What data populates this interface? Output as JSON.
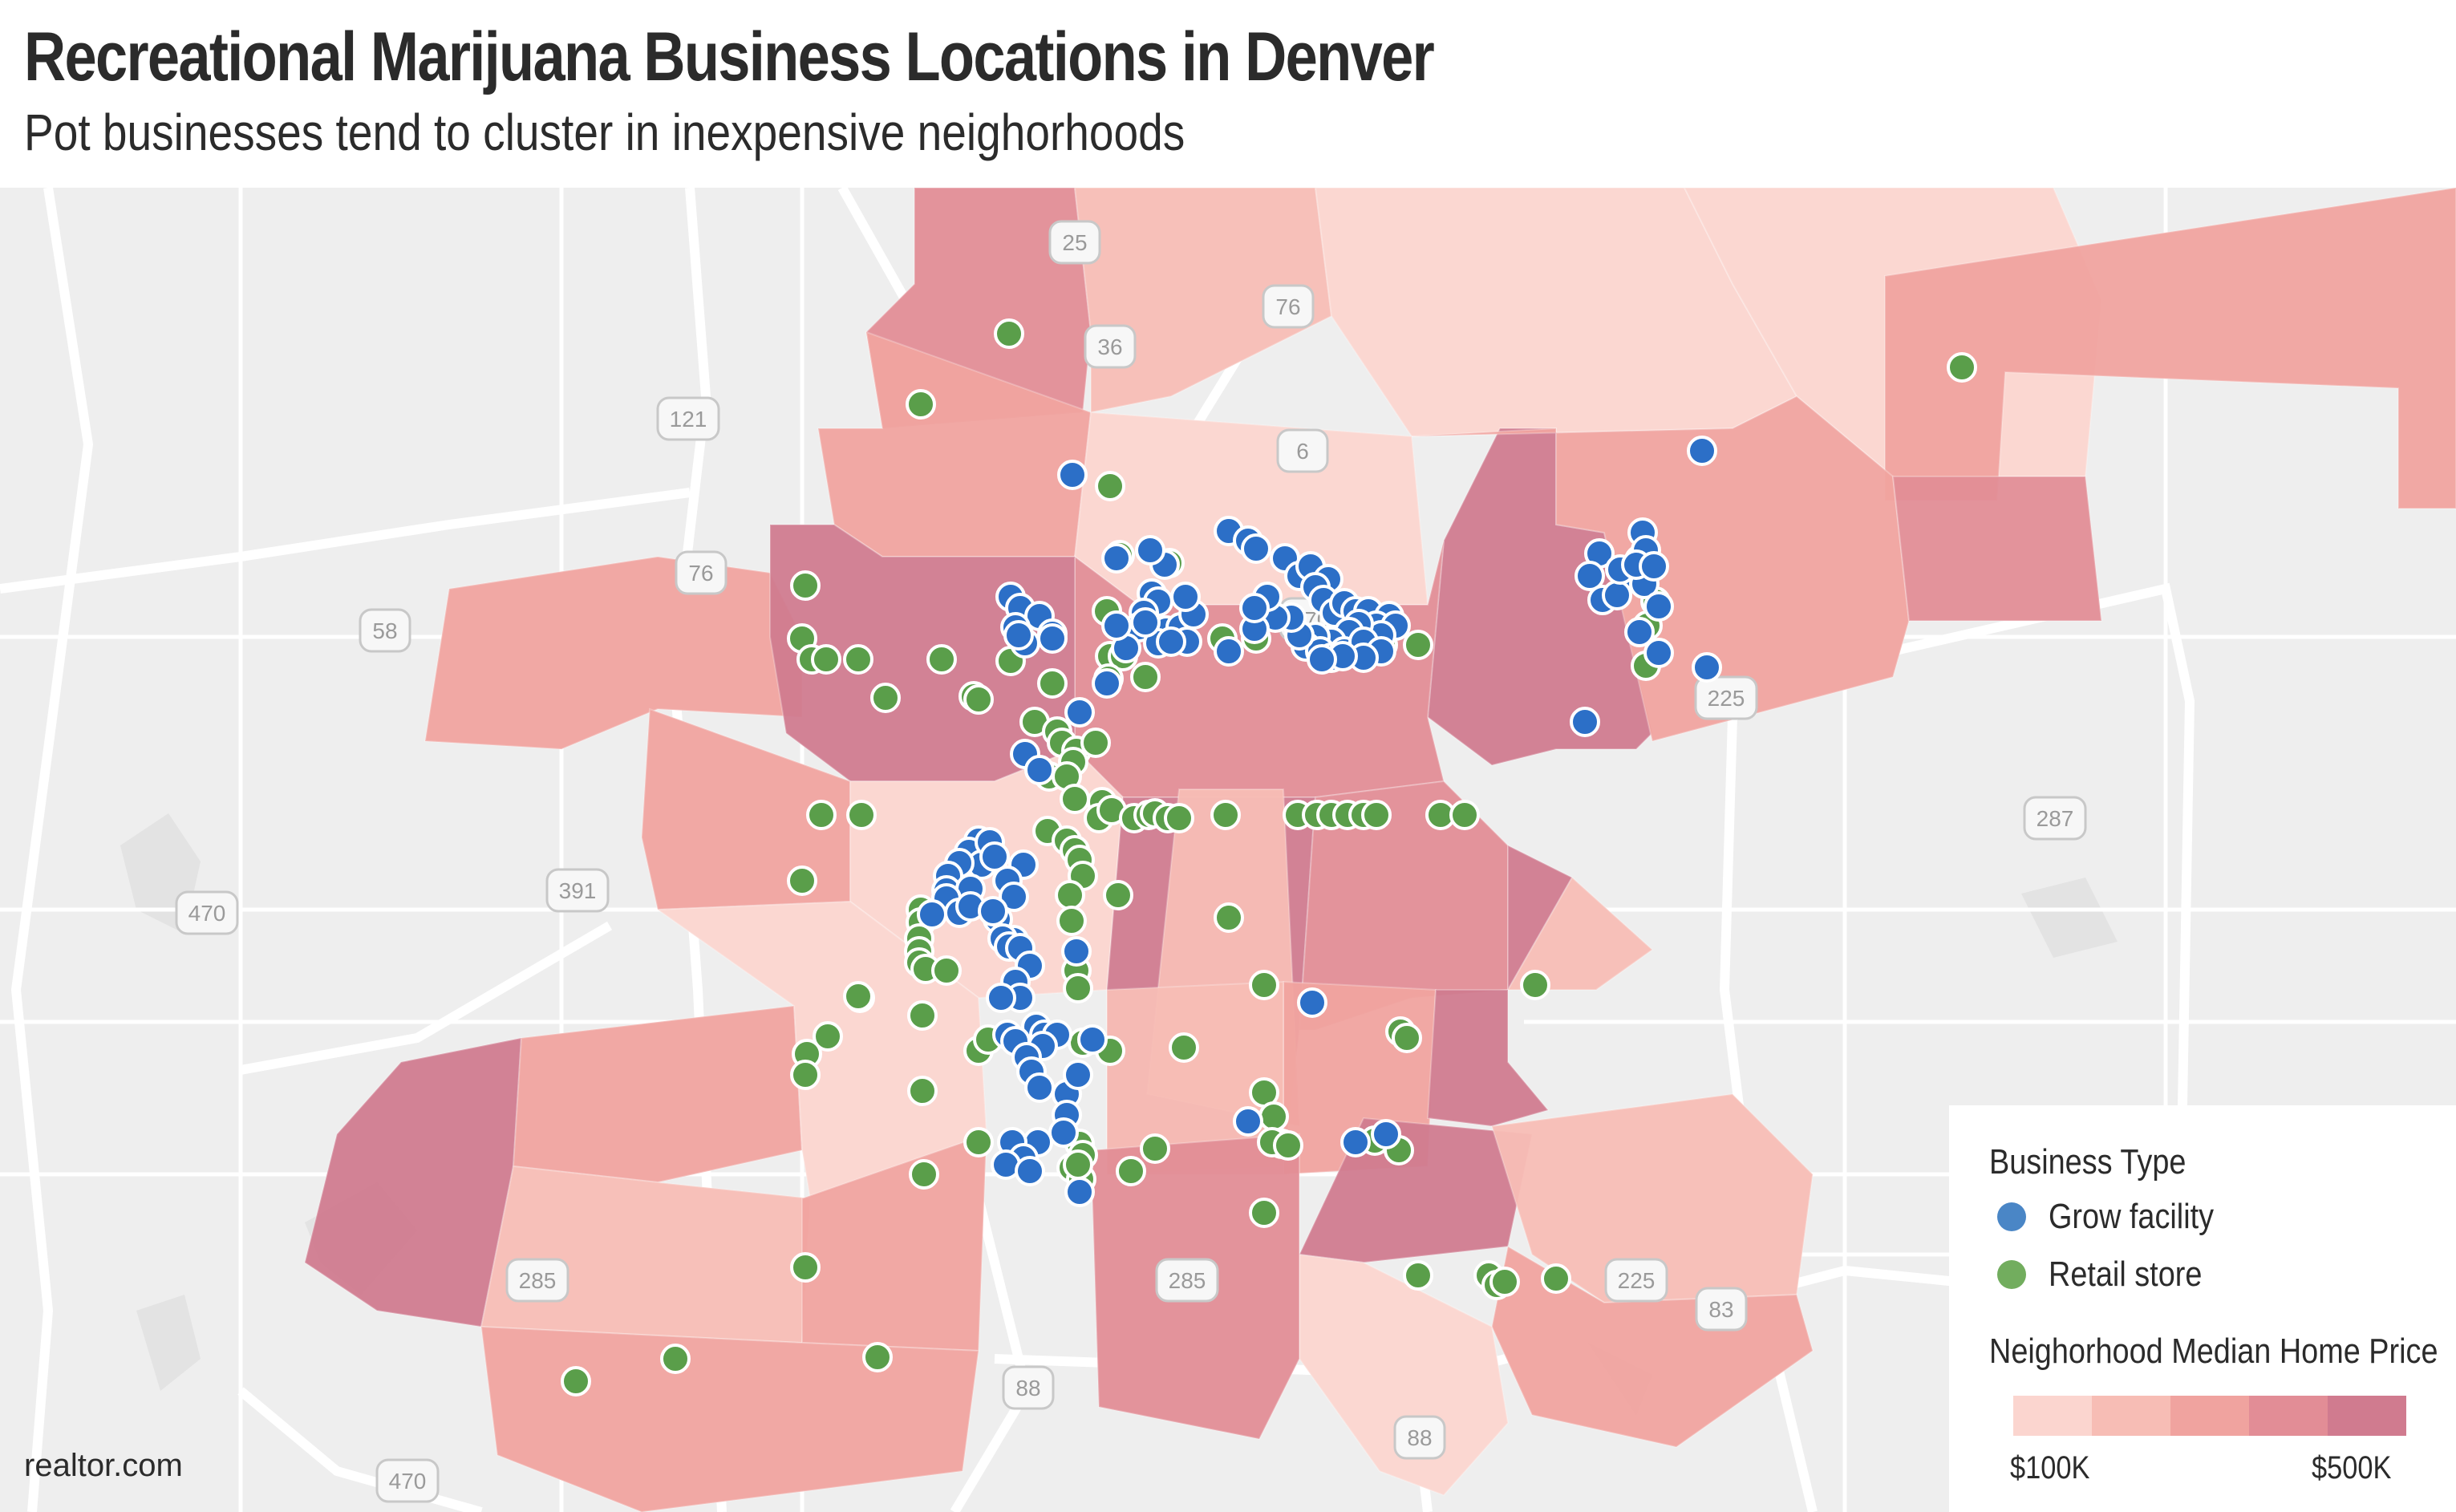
{
  "title": "Recreational Marijuana Business Locations in Denver",
  "subtitle": "Pot businesses tend to cluster in inexpensive neighorhoods",
  "source": "realtor.com",
  "colors": {
    "grow": "#2c6fc7",
    "retail": "#5a9e4a",
    "scale": [
      "#fbd5cf",
      "#f7bdb5",
      "#f0a39f",
      "#e28d96",
      "#d07b8f"
    ],
    "road": "#ffffff",
    "land": "#eeeeee"
  },
  "legend": {
    "business_heading": "Business Type",
    "items": [
      {
        "label": "Grow facility",
        "color": "#4a86c6"
      },
      {
        "label": "Retail store",
        "color": "#72ad5e"
      }
    ],
    "price_heading": "Neighorhood Median Home Price",
    "scale_min": "$100K",
    "scale_max": "$500K"
  },
  "shields": [
    {
      "label": "25"
    },
    {
      "label": "36"
    },
    {
      "label": "76"
    },
    {
      "label": "6"
    },
    {
      "label": "121"
    },
    {
      "label": "76"
    },
    {
      "label": "58"
    },
    {
      "label": "270"
    },
    {
      "label": "225"
    },
    {
      "label": "287"
    },
    {
      "label": "470"
    },
    {
      "label": "391"
    },
    {
      "label": "285"
    },
    {
      "label": "285"
    },
    {
      "label": "225"
    },
    {
      "label": "83"
    },
    {
      "label": "88"
    },
    {
      "label": "470"
    },
    {
      "label": "88"
    }
  ],
  "neighborhood_price_levels": [
    3,
    2,
    1,
    0,
    0,
    0,
    2,
    4,
    2,
    3,
    3,
    2,
    4,
    2,
    0,
    4,
    3,
    4,
    1,
    1,
    2,
    4,
    4,
    1,
    2,
    0,
    1,
    3,
    4,
    2,
    0,
    1,
    2,
    2
  ],
  "locations": {
    "grow": [
      [
        1337,
        592
      ],
      [
        2122,
        562
      ],
      [
        2048,
        664
      ],
      [
        2044,
        698
      ],
      [
        2026,
        718
      ],
      [
        2050,
        728
      ],
      [
        1994,
        690
      ],
      [
        1982,
        718
      ],
      [
        2052,
        686
      ],
      [
        2068,
        756
      ],
      [
        1998,
        748
      ],
      [
        2016,
        742
      ],
      [
        2020,
        710
      ],
      [
        2040,
        704
      ],
      [
        2062,
        706
      ],
      [
        2044,
        788
      ],
      [
        2068,
        814
      ],
      [
        2128,
        832
      ],
      [
        1976,
        900
      ],
      [
        1532,
        662
      ],
      [
        1556,
        674
      ],
      [
        1566,
        684
      ],
      [
        1602,
        696
      ],
      [
        1620,
        718
      ],
      [
        1634,
        706
      ],
      [
        1656,
        722
      ],
      [
        1640,
        732
      ],
      [
        1650,
        748
      ],
      [
        1664,
        764
      ],
      [
        1676,
        752
      ],
      [
        1690,
        762
      ],
      [
        1706,
        762
      ],
      [
        1732,
        768
      ],
      [
        1716,
        780
      ],
      [
        1740,
        780
      ],
      [
        1722,
        792
      ],
      [
        1694,
        778
      ],
      [
        1682,
        788
      ],
      [
        1660,
        800
      ],
      [
        1640,
        794
      ],
      [
        1628,
        806
      ],
      [
        1646,
        812
      ],
      [
        1660,
        820
      ],
      [
        1676,
        812
      ],
      [
        1700,
        800
      ],
      [
        1722,
        812
      ],
      [
        1700,
        820
      ],
      [
        1674,
        818
      ],
      [
        1648,
        822
      ],
      [
        1620,
        792
      ],
      [
        1610,
        770
      ],
      [
        1590,
        770
      ],
      [
        1580,
        744
      ],
      [
        1564,
        784
      ],
      [
        1564,
        758
      ],
      [
        1532,
        812
      ],
      [
        1454,
        786
      ],
      [
        1472,
        782
      ],
      [
        1480,
        800
      ],
      [
        1488,
        766
      ],
      [
        1478,
        744
      ],
      [
        1452,
        704
      ],
      [
        1434,
        686
      ],
      [
        1436,
        740
      ],
      [
        1444,
        750
      ],
      [
        1426,
        764
      ],
      [
        1392,
        696
      ],
      [
        1420,
        782
      ],
      [
        1444,
        802
      ],
      [
        1460,
        800
      ],
      [
        1428,
        776
      ],
      [
        1404,
        808
      ],
      [
        1392,
        780
      ],
      [
        1260,
        744
      ],
      [
        1272,
        758
      ],
      [
        1296,
        768
      ],
      [
        1266,
        782
      ],
      [
        1278,
        802
      ],
      [
        1312,
        790
      ],
      [
        1270,
        792
      ],
      [
        1312,
        796
      ],
      [
        1380,
        852
      ],
      [
        1346,
        888
      ],
      [
        1278,
        940
      ],
      [
        1296,
        960
      ],
      [
        1220,
        1048
      ],
      [
        1208,
        1062
      ],
      [
        1224,
        1078
      ],
      [
        1234,
        1050
      ],
      [
        1196,
        1076
      ],
      [
        1182,
        1092
      ],
      [
        1180,
        1110
      ],
      [
        1196,
        1128
      ],
      [
        1210,
        1108
      ],
      [
        1180,
        1120
      ],
      [
        1196,
        1138
      ],
      [
        1210,
        1130
      ],
      [
        1162,
        1140
      ],
      [
        1240,
        1068
      ],
      [
        1276,
        1078
      ],
      [
        1256,
        1098
      ],
      [
        1264,
        1118
      ],
      [
        1244,
        1146
      ],
      [
        1238,
        1136
      ],
      [
        1264,
        1172
      ],
      [
        1250,
        1170
      ],
      [
        1258,
        1180
      ],
      [
        1272,
        1182
      ],
      [
        1284,
        1204
      ],
      [
        1266,
        1224
      ],
      [
        1272,
        1244
      ],
      [
        1248,
        1244
      ],
      [
        1256,
        1290
      ],
      [
        1292,
        1280
      ],
      [
        1302,
        1290
      ],
      [
        1318,
        1290
      ],
      [
        1300,
        1304
      ],
      [
        1266,
        1298
      ],
      [
        1280,
        1318
      ],
      [
        1286,
        1336
      ],
      [
        1296,
        1356
      ],
      [
        1330,
        1364
      ],
      [
        1330,
        1390
      ],
      [
        1326,
        1412
      ],
      [
        1294,
        1424
      ],
      [
        1262,
        1424
      ],
      [
        1276,
        1444
      ],
      [
        1254,
        1452
      ],
      [
        1284,
        1460
      ],
      [
        1346,
        1486
      ],
      [
        1556,
        1398
      ],
      [
        1636,
        1250
      ],
      [
        1690,
        1424
      ],
      [
        1728,
        1414
      ],
      [
        1342,
        1186
      ],
      [
        1362,
        1296
      ],
      [
        1344,
        1340
      ]
    ],
    "retail": [
      [
        1258,
        416
      ],
      [
        1148,
        504
      ],
      [
        1384,
        606
      ],
      [
        1396,
        692
      ],
      [
        1458,
        702
      ],
      [
        1380,
        762
      ],
      [
        1568,
        762
      ],
      [
        1566,
        796
      ],
      [
        1524,
        796
      ],
      [
        1384,
        818
      ],
      [
        1400,
        818
      ],
      [
        1382,
        846
      ],
      [
        1428,
        844
      ],
      [
        1768,
        804
      ],
      [
        1660,
        798
      ],
      [
        1708,
        808
      ],
      [
        1724,
        804
      ],
      [
        2064,
        750
      ],
      [
        2054,
        780
      ],
      [
        2052,
        830
      ],
      [
        2446,
        458
      ],
      [
        1004,
        730
      ],
      [
        1000,
        796
      ],
      [
        1012,
        822
      ],
      [
        1030,
        822
      ],
      [
        1070,
        822
      ],
      [
        1174,
        822
      ],
      [
        1104,
        870
      ],
      [
        1214,
        868
      ],
      [
        1220,
        872
      ],
      [
        1260,
        824
      ],
      [
        1312,
        852
      ],
      [
        1290,
        900
      ],
      [
        1318,
        912
      ],
      [
        1324,
        926
      ],
      [
        1342,
        936
      ],
      [
        1366,
        926
      ],
      [
        1338,
        950
      ],
      [
        1308,
        968
      ],
      [
        1330,
        968
      ],
      [
        1340,
        996
      ],
      [
        1374,
        1000
      ],
      [
        1370,
        1020
      ],
      [
        1386,
        1010
      ],
      [
        1414,
        1020
      ],
      [
        1432,
        1016
      ],
      [
        1440,
        1014
      ],
      [
        1456,
        1020
      ],
      [
        1470,
        1020
      ],
      [
        1528,
        1016
      ],
      [
        1618,
        1016
      ],
      [
        1642,
        1016
      ],
      [
        1660,
        1016
      ],
      [
        1680,
        1016
      ],
      [
        1700,
        1016
      ],
      [
        1716,
        1016
      ],
      [
        1796,
        1016
      ],
      [
        1826,
        1016
      ],
      [
        1306,
        1036
      ],
      [
        1330,
        1048
      ],
      [
        1340,
        1060
      ],
      [
        1346,
        1072
      ],
      [
        1350,
        1092
      ],
      [
        1394,
        1116
      ],
      [
        1334,
        1116
      ],
      [
        1024,
        1016
      ],
      [
        1074,
        1016
      ],
      [
        1000,
        1098
      ],
      [
        1180,
        1120
      ],
      [
        1148,
        1134
      ],
      [
        1148,
        1150
      ],
      [
        1146,
        1170
      ],
      [
        1146,
        1186
      ],
      [
        1146,
        1200
      ],
      [
        1154,
        1208
      ],
      [
        1180,
        1210
      ],
      [
        1336,
        1148
      ],
      [
        1342,
        1210
      ],
      [
        1344,
        1232
      ],
      [
        1532,
        1144
      ],
      [
        1576,
        1228
      ],
      [
        1072,
        1244
      ],
      [
        1150,
        1266
      ],
      [
        1150,
        1360
      ],
      [
        1032,
        1292
      ],
      [
        1006,
        1314
      ],
      [
        1004,
        1340
      ],
      [
        1350,
        1300
      ],
      [
        1220,
        1310
      ],
      [
        1232,
        1296
      ],
      [
        1384,
        1310
      ],
      [
        1476,
        1306
      ],
      [
        1576,
        1362
      ],
      [
        1588,
        1392
      ],
      [
        1598,
        1426
      ],
      [
        1586,
        1424
      ],
      [
        1606,
        1428
      ],
      [
        1440,
        1432
      ],
      [
        1410,
        1460
      ],
      [
        1346,
        1426
      ],
      [
        1350,
        1440
      ],
      [
        1336,
        1456
      ],
      [
        1220,
        1424
      ],
      [
        1348,
        1470
      ],
      [
        1344,
        1452
      ],
      [
        1152,
        1464
      ],
      [
        1576,
        1512
      ],
      [
        1746,
        1286
      ],
      [
        1754,
        1294
      ],
      [
        1714,
        1422
      ],
      [
        1744,
        1434
      ],
      [
        1768,
        1590
      ],
      [
        1856,
        1590
      ],
      [
        1866,
        1602
      ],
      [
        1876,
        1598
      ],
      [
        1940,
        1594
      ],
      [
        1914,
        1228
      ],
      [
        1004,
        1580
      ],
      [
        1094,
        1692
      ],
      [
        842,
        1694
      ],
      [
        718,
        1722
      ],
      [
        1070,
        1242
      ]
    ]
  }
}
